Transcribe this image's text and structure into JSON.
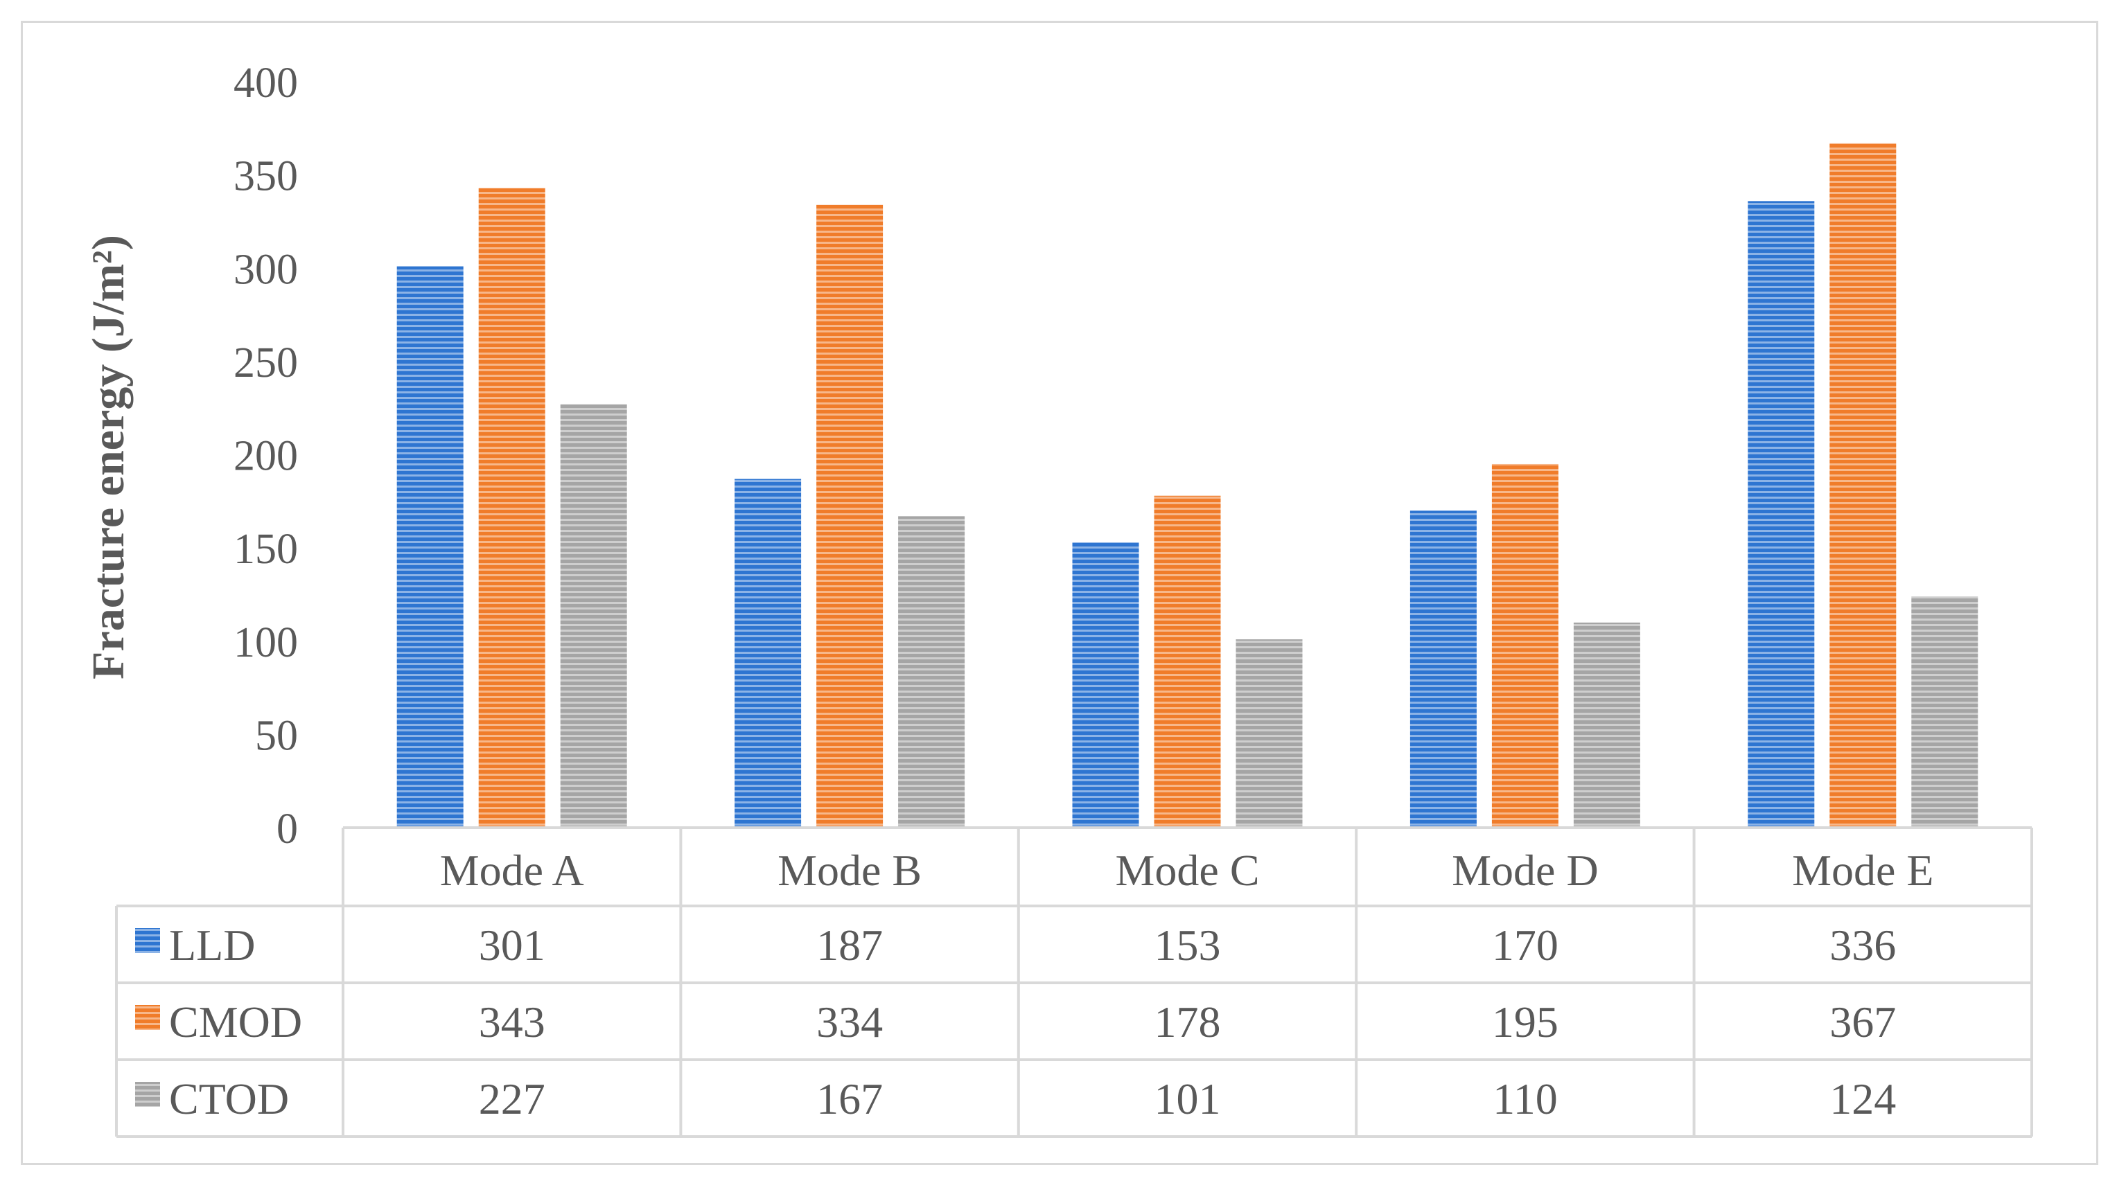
{
  "chart_data": {
    "type": "bar",
    "categories": [
      "Mode A",
      "Mode B",
      "Mode C",
      "Mode D",
      "Mode E"
    ],
    "series": [
      {
        "name": "LLD",
        "values": [
          301,
          187,
          153,
          170,
          336
        ],
        "color": "#2e75d1"
      },
      {
        "name": "CMOD",
        "values": [
          343,
          334,
          178,
          195,
          367
        ],
        "color": "#f07c2a"
      },
      {
        "name": "CTOD",
        "values": [
          227,
          167,
          101,
          110,
          124
        ],
        "color": "#a5a5a5"
      }
    ],
    "title": "",
    "xlabel": "",
    "ylabel": "Fracture energy (J/m²)",
    "ylim": [
      0,
      400
    ],
    "yticks": [
      0,
      50,
      100,
      150,
      200,
      250,
      300,
      350,
      400
    ],
    "grid": false,
    "bar_pattern": "horizontal-stripes",
    "legend": "data-table-below"
  }
}
